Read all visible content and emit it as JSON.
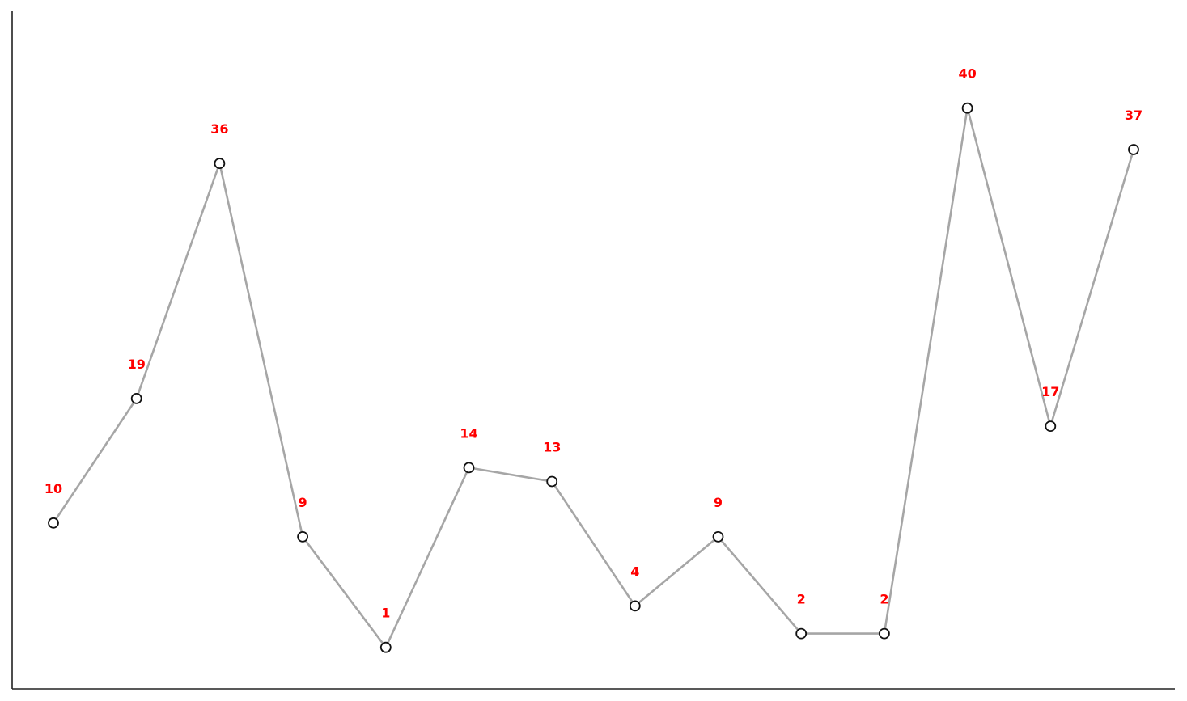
{
  "chart_data": {
    "type": "line",
    "title": "",
    "xlabel": "",
    "ylabel": "",
    "x": [
      0,
      1,
      2,
      3,
      4,
      5,
      6,
      7,
      8,
      9,
      10,
      11,
      12,
      13
    ],
    "values": [
      10,
      19,
      36,
      9,
      1,
      14,
      13,
      4,
      9,
      2,
      2,
      40,
      17,
      37
    ],
    "ylim": [
      -2,
      47
    ],
    "grid": false,
    "legend": "none",
    "data_labels": true,
    "colors": {
      "line": "#a6a6a6",
      "marker_fill": "#ffffff",
      "marker_edge": "#111111",
      "label": "#ff0000",
      "axis": "#222222"
    }
  }
}
